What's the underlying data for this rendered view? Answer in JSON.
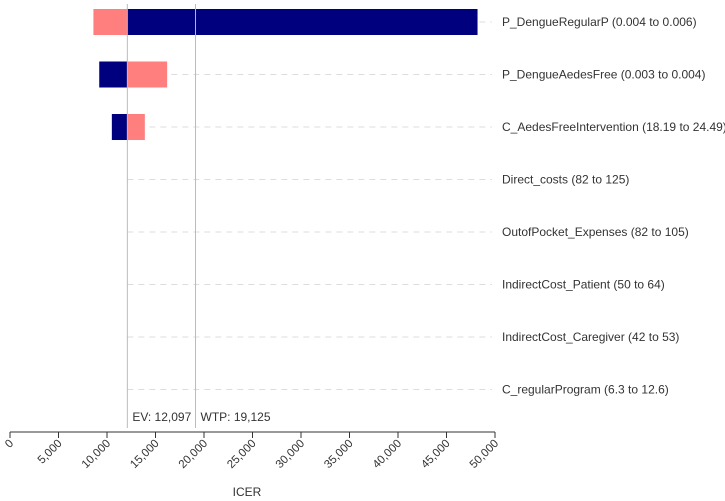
{
  "chart_data": {
    "type": "bar",
    "orientation": "horizontal",
    "subtype": "tornado",
    "xlabel": "ICER",
    "xlim": [
      0,
      50000
    ],
    "xticks": [
      0,
      5000,
      10000,
      15000,
      20000,
      25000,
      30000,
      35000,
      40000,
      45000,
      50000
    ],
    "xtick_labels": [
      "0",
      "5,000",
      "10,000",
      "15,000",
      "20,000",
      "25,000",
      "30,000",
      "35,000",
      "40,000",
      "45,000",
      "50,000"
    ],
    "colors": {
      "dark": "#00007f",
      "light": "#ff7f7f",
      "reference_line": "#bbbbbb",
      "guide_line": "#dddddd",
      "axis": "#333333"
    },
    "reference_lines": [
      {
        "value": 12097,
        "label": "EV: 12,097"
      },
      {
        "value": 19125,
        "label": "WTP: 19,125"
      }
    ],
    "bars": [
      {
        "label": "P_DengueRegularP (0.004 to 0.006)",
        "light": [
          8600,
          12097
        ],
        "dark": [
          12097,
          48200
        ]
      },
      {
        "label": "P_DengueAedesFree (0.003 to 0.004)",
        "light": [
          12097,
          16200
        ],
        "dark": [
          9200,
          12097
        ]
      },
      {
        "label": "C_AedesFreeIntervention (18.19 to 24.49)",
        "light": [
          12097,
          13900
        ],
        "dark": [
          10500,
          12097
        ]
      },
      {
        "label": "Direct_costs (82 to 125)",
        "light": null,
        "dark": null
      },
      {
        "label": "OutofPocket_Expenses (82 to 105)",
        "light": null,
        "dark": null
      },
      {
        "label": "IndirectCost_Patient (50 to 64)",
        "light": null,
        "dark": null
      },
      {
        "label": "IndirectCost_Caregiver (42 to 53)",
        "light": null,
        "dark": null
      },
      {
        "label": "C_regularProgram (6.3 to 12.6)",
        "light": null,
        "dark": null
      }
    ]
  }
}
